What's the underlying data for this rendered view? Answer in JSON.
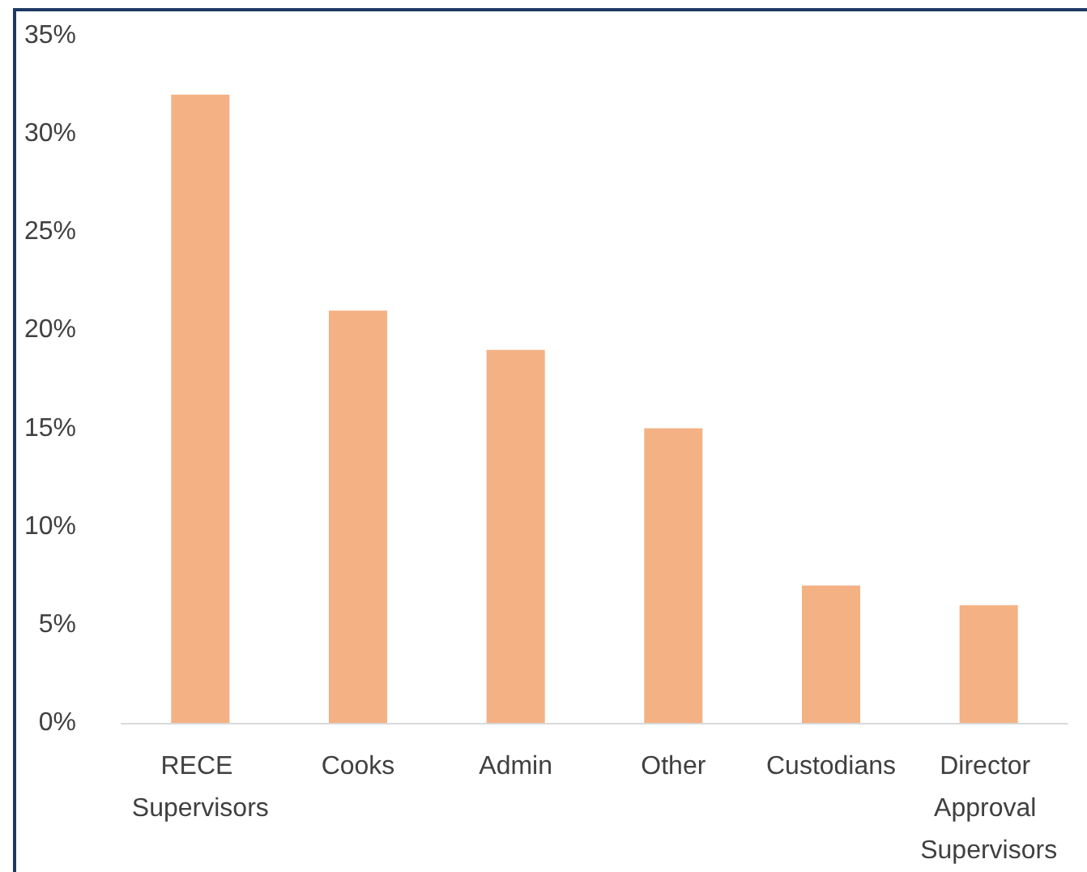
{
  "chart_data": {
    "type": "bar",
    "categories": [
      "RECE Supervisors",
      "Cooks",
      "Admin",
      "Other",
      "Custodians",
      "Director Approval Supervisors"
    ],
    "values": [
      32,
      21,
      19,
      15,
      7,
      6
    ],
    "color": "#f4b183",
    "ylim": [
      0,
      35
    ],
    "yticks": [
      {
        "value": 0,
        "label": "0%"
      },
      {
        "value": 5,
        "label": "5%"
      },
      {
        "value": 10,
        "label": "10%"
      },
      {
        "value": 15,
        "label": "15%"
      },
      {
        "value": 20,
        "label": "20%"
      },
      {
        "value": 25,
        "label": "25%"
      },
      {
        "value": 30,
        "label": "30%"
      },
      {
        "value": 35,
        "label": "35%"
      }
    ],
    "grid": false
  }
}
